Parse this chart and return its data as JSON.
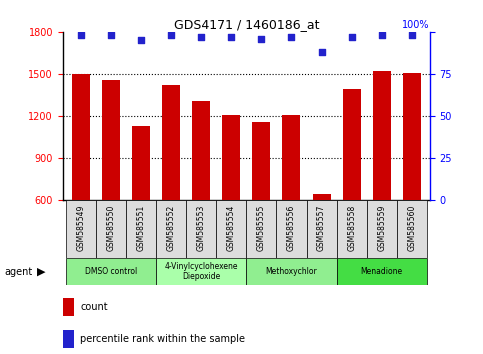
{
  "title": "GDS4171 / 1460186_at",
  "samples": [
    "GSM585549",
    "GSM585550",
    "GSM585551",
    "GSM585552",
    "GSM585553",
    "GSM585554",
    "GSM585555",
    "GSM585556",
    "GSM585557",
    "GSM585558",
    "GSM585559",
    "GSM585560"
  ],
  "counts": [
    1500,
    1460,
    1130,
    1420,
    1310,
    1210,
    1160,
    1210,
    640,
    1390,
    1520,
    1505
  ],
  "percentile_ranks": [
    98,
    98,
    95,
    98,
    97,
    97,
    96,
    97,
    88,
    97,
    98,
    98
  ],
  "ylim_left": [
    600,
    1800
  ],
  "ylim_right": [
    0,
    100
  ],
  "yticks_left": [
    600,
    900,
    1200,
    1500,
    1800
  ],
  "yticks_right": [
    0,
    25,
    50,
    75,
    100
  ],
  "bar_color": "#cc0000",
  "dot_color": "#2222cc",
  "agents": [
    {
      "label": "DMSO control",
      "start": 0,
      "end": 3,
      "color": "#90ee90"
    },
    {
      "label": "4-Vinylcyclohexene\nDiepoxide",
      "start": 3,
      "end": 6,
      "color": "#aaffaa"
    },
    {
      "label": "Methoxychlor",
      "start": 6,
      "end": 9,
      "color": "#90ee90"
    },
    {
      "label": "Menadione",
      "start": 9,
      "end": 12,
      "color": "#44dd44"
    }
  ],
  "legend_count_label": "count",
  "legend_percentile_label": "percentile rank within the sample",
  "agent_label": "agent",
  "bar_width": 0.6,
  "tick_bg_color": "#dddddd"
}
